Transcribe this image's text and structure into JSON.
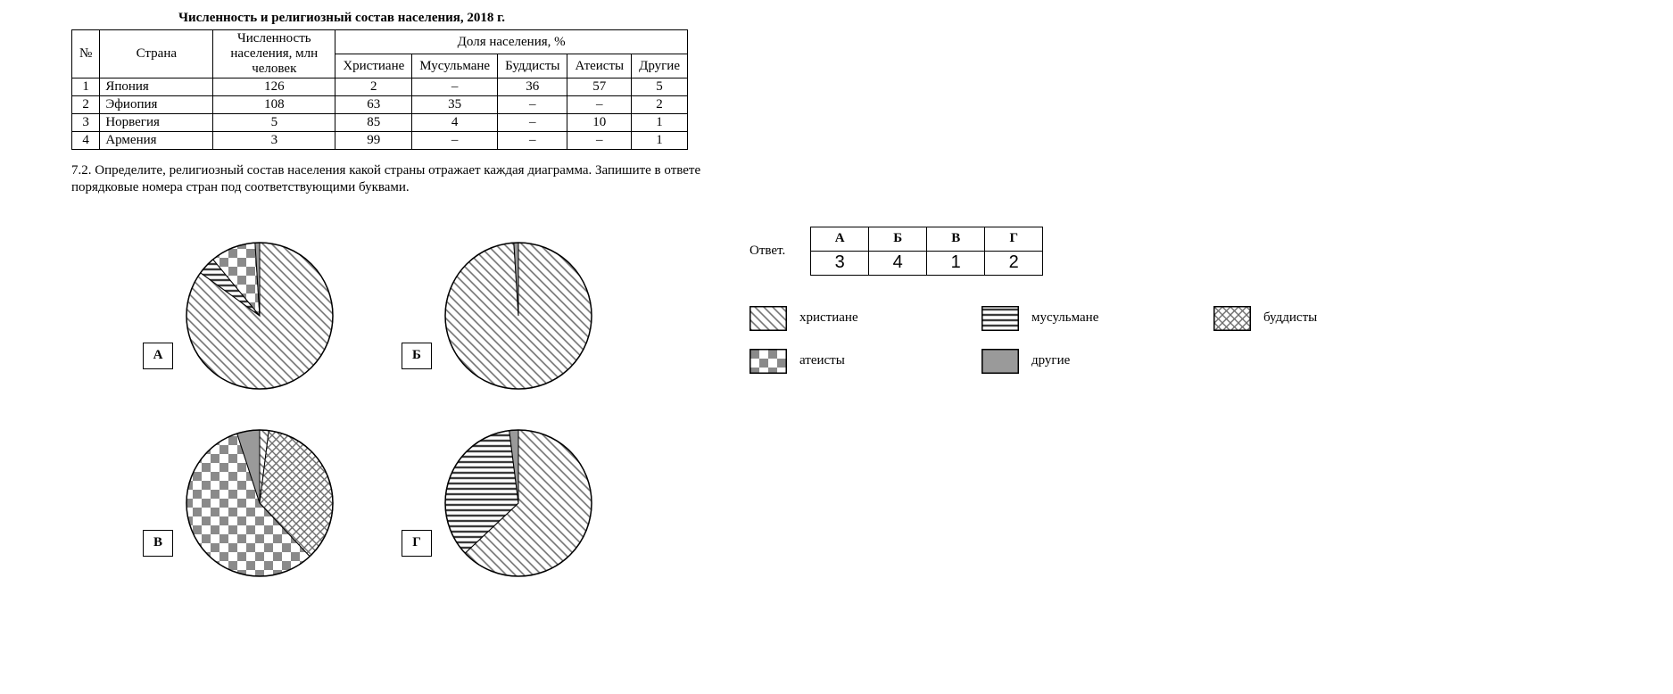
{
  "title": "Численность и религиозный состав населения, 2018 г.",
  "table": {
    "head_num": "№",
    "head_country": "Страна",
    "head_pop": "Численность населения, млн человек",
    "head_share": "Доля населения, %",
    "cols": [
      "Христиане",
      "Мусульмане",
      "Буддисты",
      "Атеисты",
      "Другие"
    ],
    "rows": [
      {
        "n": "1",
        "country": "Япония",
        "pop": "126",
        "v": [
          "2",
          "–",
          "36",
          "57",
          "5"
        ]
      },
      {
        "n": "2",
        "country": "Эфиопия",
        "pop": "108",
        "v": [
          "63",
          "35",
          "–",
          "–",
          "2"
        ]
      },
      {
        "n": "3",
        "country": "Норвегия",
        "pop": "5",
        "v": [
          "85",
          "4",
          "–",
          "10",
          "1"
        ]
      },
      {
        "n": "4",
        "country": "Армения",
        "pop": "3",
        "v": [
          "99",
          "–",
          "–",
          "–",
          "1"
        ]
      }
    ]
  },
  "task": "7.2.  Определите, религиозный состав населения какой страны отражает каждая диаграмма. Запишите в ответе порядковые номера стран под соответствующими буквами.",
  "categories": [
    {
      "key": "christ",
      "label": "христиане",
      "pattern": "diag"
    },
    {
      "key": "muslim",
      "label": "мусульмане",
      "pattern": "hstripe"
    },
    {
      "key": "budd",
      "label": "буддисты",
      "pattern": "cross"
    },
    {
      "key": "atheist",
      "label": "атеисты",
      "pattern": "check"
    },
    {
      "key": "other",
      "label": "другие",
      "pattern": "solid"
    }
  ],
  "pies": {
    "radius": 82,
    "stroke": "#000",
    "items": [
      {
        "letter": "А",
        "slices": [
          {
            "cat": "christ",
            "pct": 85
          },
          {
            "cat": "muslim",
            "pct": 4
          },
          {
            "cat": "atheist",
            "pct": 10
          },
          {
            "cat": "other",
            "pct": 1
          }
        ]
      },
      {
        "letter": "Б",
        "slices": [
          {
            "cat": "christ",
            "pct": 99
          },
          {
            "cat": "other",
            "pct": 1
          }
        ]
      },
      {
        "letter": "В",
        "slices": [
          {
            "cat": "christ",
            "pct": 2
          },
          {
            "cat": "budd",
            "pct": 36
          },
          {
            "cat": "atheist",
            "pct": 57
          },
          {
            "cat": "other",
            "pct": 5
          }
        ]
      },
      {
        "letter": "Г",
        "slices": [
          {
            "cat": "christ",
            "pct": 63
          },
          {
            "cat": "muslim",
            "pct": 35
          },
          {
            "cat": "other",
            "pct": 2
          }
        ]
      }
    ]
  },
  "answer": {
    "label": "Ответ.",
    "letters": [
      "А",
      "Б",
      "В",
      "Г"
    ],
    "values": [
      "3",
      "4",
      "1",
      "2"
    ]
  },
  "patterns": {
    "diag": {
      "type": "lines",
      "angle": 45,
      "step": 7,
      "stroke": "#6f6f6f",
      "sw": 1.6,
      "bg": "#ffffff"
    },
    "hstripe": {
      "type": "lines",
      "angle": 0,
      "step": 6,
      "stroke": "#3a3a3a",
      "sw": 2.4,
      "bg": "#ffffff"
    },
    "cross": {
      "type": "cross",
      "step": 9,
      "stroke": "#6f6f6f",
      "sw": 1.4,
      "bg": "#ffffff"
    },
    "check": {
      "type": "checker",
      "step": 10,
      "dark": "#8a8a8a",
      "light": "#ffffff"
    },
    "solid": {
      "type": "solid",
      "fill": "#9a9a9a"
    }
  }
}
